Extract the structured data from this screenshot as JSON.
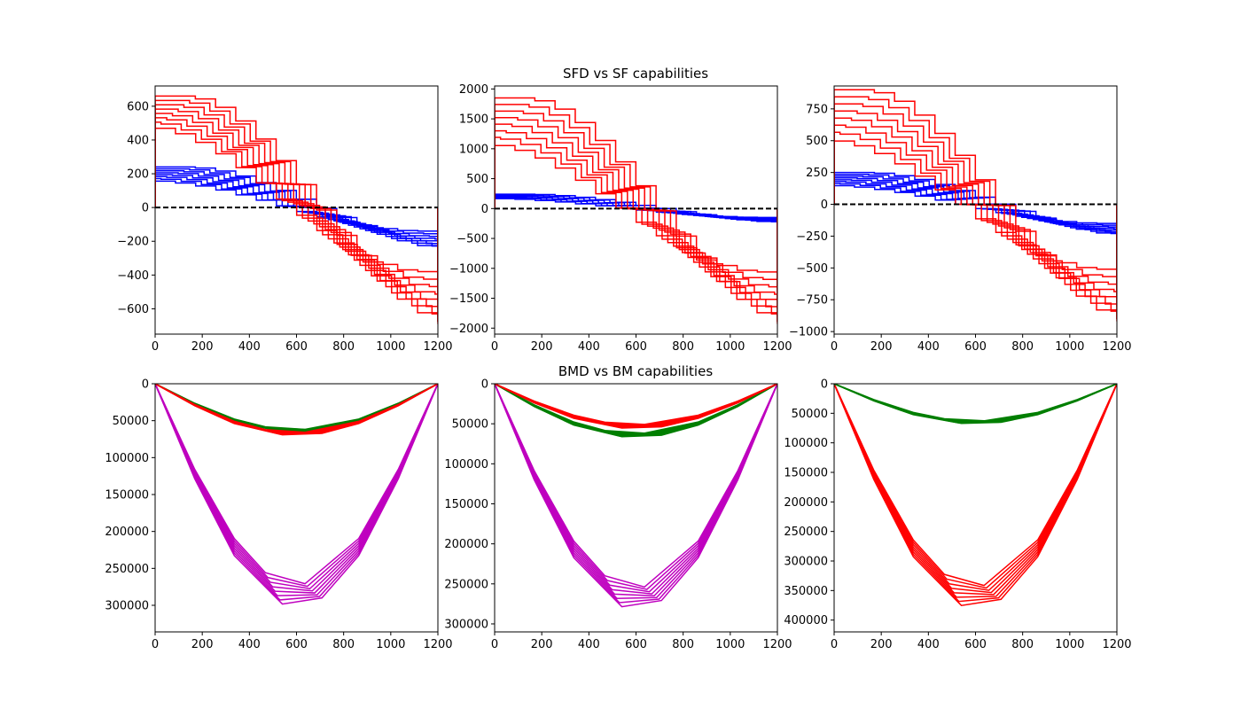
{
  "figure": {
    "title_top": "SFD vs SF capabilities",
    "title_bottom": "BMD vs BM capabilities"
  },
  "chart_data": [
    {
      "type": "line",
      "row": 0,
      "col": 0,
      "title": "",
      "xlim": [
        0,
        1200
      ],
      "ylim": [
        -750,
        720
      ],
      "y_inverted": false,
      "xticks": [
        0,
        200,
        400,
        600,
        800,
        1000,
        1200
      ],
      "yticks": [
        -600,
        -400,
        -200,
        0,
        200,
        400,
        600
      ],
      "zero_line": true,
      "zero_line_color": "#000000",
      "series": [
        {
          "role": "shear_force",
          "color": "#0000ff",
          "style": "step",
          "curves": 8,
          "x": [
            0,
            1200
          ],
          "y_start": [
            160,
            240
          ],
          "y_end": [
            -140,
            -250
          ]
        },
        {
          "role": "shear_capacity",
          "color": "#ff0000",
          "style": "step",
          "curves": 8,
          "x": [
            0,
            1200
          ],
          "y_start": [
            480,
            660
          ],
          "y_end": [
            -380,
            -690
          ]
        }
      ]
    },
    {
      "type": "line",
      "row": 0,
      "col": 1,
      "title": "SFD vs SF capabilities",
      "xlim": [
        0,
        1200
      ],
      "ylim": [
        -2100,
        2050
      ],
      "y_inverted": false,
      "xticks": [
        0,
        200,
        400,
        600,
        800,
        1000,
        1200
      ],
      "yticks": [
        -2000,
        -1500,
        -1000,
        -500,
        0,
        500,
        1000,
        1500,
        2000
      ],
      "zero_line": true,
      "zero_line_color": "#000000",
      "series": [
        {
          "role": "shear_force",
          "color": "#0000ff",
          "style": "step",
          "curves": 8,
          "x": [
            0,
            1200
          ],
          "y_start": [
            170,
            240
          ],
          "y_end": [
            -150,
            -240
          ]
        },
        {
          "role": "shear_capacity",
          "color": "#ff0000",
          "style": "step",
          "curves": 8,
          "x": [
            0,
            1200
          ],
          "y_start": [
            1080,
            1850
          ],
          "y_end": [
            -1060,
            -1930
          ]
        }
      ]
    },
    {
      "type": "line",
      "row": 0,
      "col": 2,
      "title": "",
      "xlim": [
        0,
        1200
      ],
      "ylim": [
        -1020,
        930
      ],
      "y_inverted": false,
      "xticks": [
        0,
        200,
        400,
        600,
        800,
        1000,
        1200
      ],
      "yticks": [
        -1000,
        -750,
        -500,
        -250,
        0,
        250,
        500,
        750
      ],
      "zero_line": true,
      "zero_line_color": "#000000",
      "series": [
        {
          "role": "shear_force",
          "color": "#0000ff",
          "style": "step",
          "curves": 8,
          "x": [
            0,
            1200
          ],
          "y_start": [
            150,
            250
          ],
          "y_end": [
            -150,
            -250
          ]
        },
        {
          "role": "shear_capacity",
          "color": "#ff0000",
          "style": "step",
          "curves": 8,
          "x": [
            0,
            1200
          ],
          "y_start": [
            510,
            900
          ],
          "y_end": [
            -510,
            -920
          ]
        }
      ]
    },
    {
      "type": "line",
      "row": 1,
      "col": 0,
      "title": "BMD vs BM capabilities",
      "xlim": [
        0,
        1200
      ],
      "ylim": [
        0,
        336000
      ],
      "y_inverted": true,
      "xticks": [
        0,
        200,
        400,
        600,
        800,
        1000,
        1200
      ],
      "yticks": [
        0,
        50000,
        100000,
        150000,
        200000,
        250000,
        300000
      ],
      "zero_line": true,
      "zero_line_color": "#000000",
      "series": [
        {
          "role": "bending_capacity",
          "color": "#bf00bf",
          "style": "polyline",
          "curves": 8,
          "x": [
            0,
            1200
          ],
          "peak": [
            272000,
            302000
          ]
        },
        {
          "role": "bending_capacity",
          "color": "#007f00",
          "style": "polyline",
          "curves": 8,
          "x": [
            0,
            1200
          ],
          "peak": [
            62000,
            66000
          ]
        },
        {
          "role": "bending_moment",
          "color": "#ff0000",
          "style": "polyline",
          "curves": 8,
          "x": [
            0,
            1200
          ],
          "peak": [
            66000,
            70000
          ]
        }
      ]
    },
    {
      "type": "line",
      "row": 1,
      "col": 1,
      "title": "",
      "xlim": [
        0,
        1200
      ],
      "ylim": [
        0,
        310000
      ],
      "y_inverted": true,
      "xticks": [
        0,
        200,
        400,
        600,
        800,
        1000,
        1200
      ],
      "yticks": [
        0,
        50000,
        100000,
        150000,
        200000,
        250000,
        300000
      ],
      "zero_line": true,
      "zero_line_color": "#000000",
      "series": [
        {
          "role": "bending_capacity",
          "color": "#bf00bf",
          "style": "polyline",
          "curves": 8,
          "x": [
            0,
            1200
          ],
          "peak": [
            255000,
            282000
          ]
        },
        {
          "role": "bending_capacity",
          "color": "#007f00",
          "style": "polyline",
          "curves": 8,
          "x": [
            0,
            1200
          ],
          "peak": [
            62000,
            67000
          ]
        },
        {
          "role": "bending_moment",
          "color": "#ff0000",
          "style": "polyline",
          "curves": 8,
          "x": [
            0,
            1200
          ],
          "peak": [
            51000,
            56000
          ]
        }
      ]
    },
    {
      "type": "line",
      "row": 1,
      "col": 2,
      "title": "",
      "xlim": [
        0,
        1200
      ],
      "ylim": [
        0,
        420000
      ],
      "y_inverted": true,
      "xticks": [
        0,
        200,
        400,
        600,
        800,
        1000,
        1200
      ],
      "yticks": [
        0,
        50000,
        100000,
        150000,
        200000,
        250000,
        300000,
        350000,
        400000
      ],
      "zero_line": true,
      "zero_line_color": "#000000",
      "series": [
        {
          "role": "bending_capacity",
          "color": "#ff0000",
          "style": "polyline",
          "curves": 8,
          "x": [
            0,
            1200
          ],
          "peak": [
            343000,
            380000
          ]
        },
        {
          "role": "bending_moment",
          "color": "#007f00",
          "style": "polyline",
          "curves": 8,
          "x": [
            0,
            1200
          ],
          "peak": [
            63000,
            68000
          ]
        }
      ]
    }
  ]
}
